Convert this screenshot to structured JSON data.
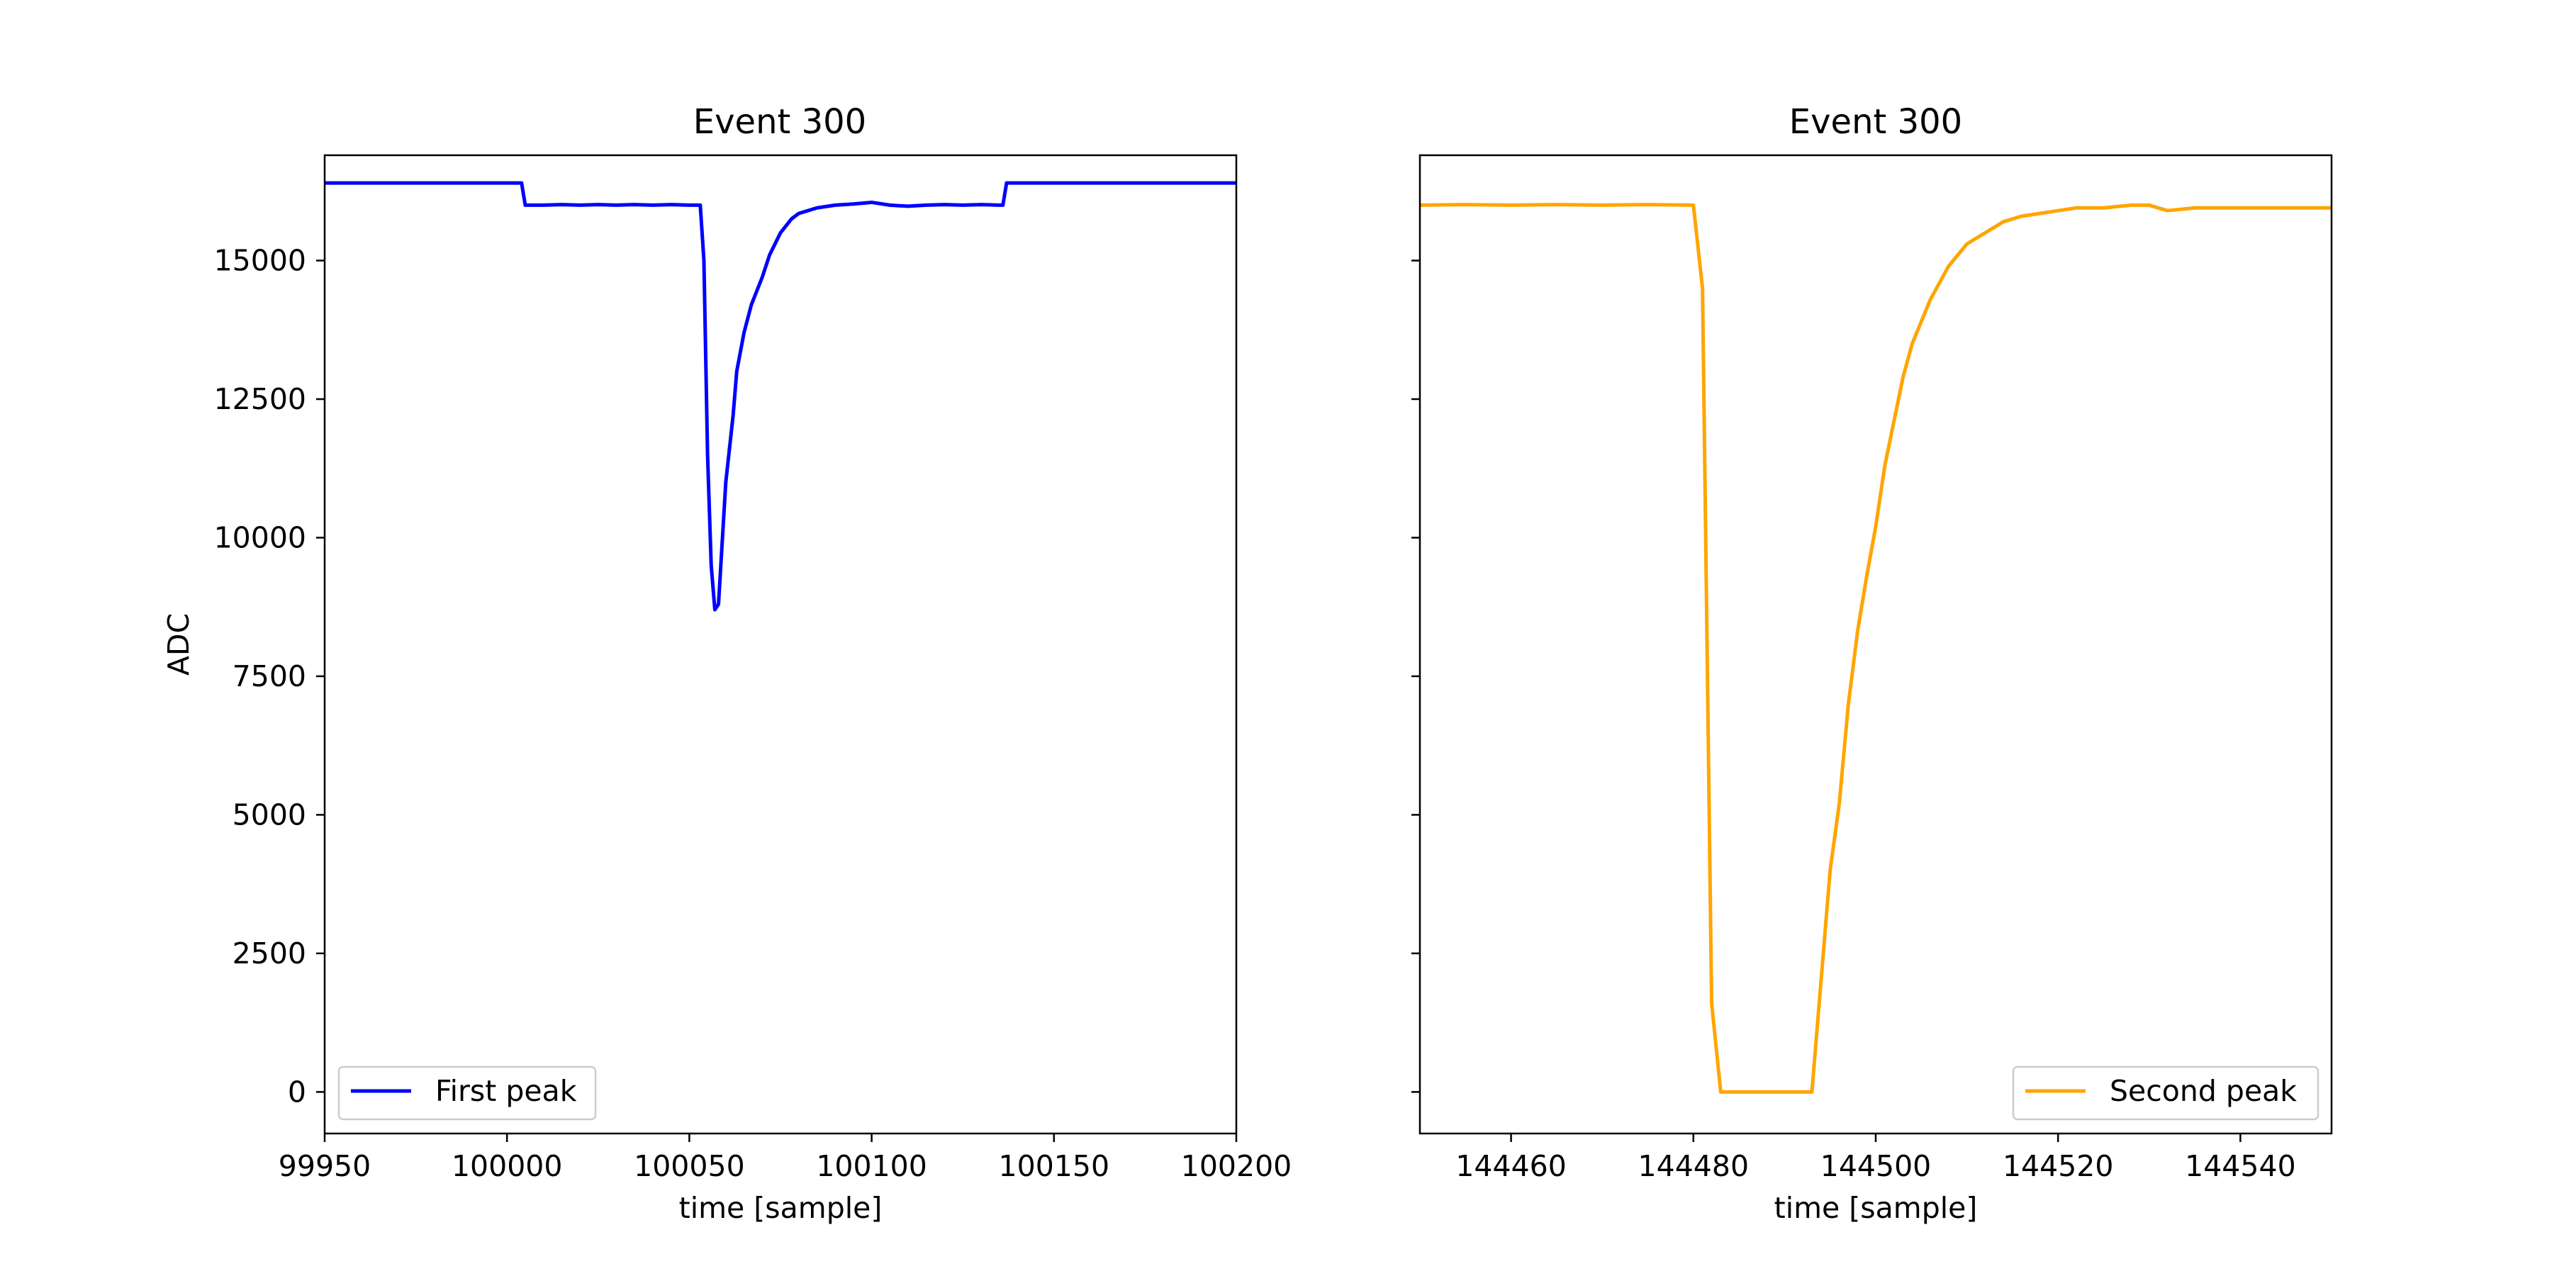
{
  "chart_data": [
    {
      "type": "line",
      "title": "Event 300",
      "xlabel": "time [sample]",
      "ylabel": "ADC",
      "xlim": [
        99950,
        100200
      ],
      "ylim": [
        -750,
        16900
      ],
      "xticks": [
        99950,
        100000,
        100050,
        100100,
        100150,
        100200
      ],
      "yticks": [
        0,
        2500,
        5000,
        7500,
        10000,
        12500,
        15000
      ],
      "legend_position": "lower-left",
      "grid": false,
      "series": [
        {
          "name": "First peak",
          "color": "#0000ff",
          "x": [
            99950,
            100004,
            100005,
            100006,
            100010,
            100015,
            100020,
            100025,
            100030,
            100035,
            100040,
            100045,
            100050,
            100053,
            100054,
            100055,
            100056,
            100057,
            100058,
            100059,
            100060,
            100062,
            100063,
            100065,
            100067,
            100070,
            100072,
            100075,
            100078,
            100080,
            100085,
            100090,
            100095,
            100100,
            100105,
            100110,
            100115,
            100120,
            100125,
            100130,
            100135,
            100136,
            100137,
            100140,
            100200
          ],
          "y": [
            16400,
            16400,
            16000,
            16000,
            16000,
            16010,
            16000,
            16010,
            16000,
            16010,
            16000,
            16010,
            16000,
            16000,
            15000,
            11500,
            9500,
            8700,
            8800,
            9900,
            11000,
            12200,
            13000,
            13700,
            14200,
            14700,
            15100,
            15500,
            15750,
            15850,
            15950,
            16000,
            16020,
            16050,
            16000,
            15980,
            16000,
            16010,
            16000,
            16010,
            16000,
            16000,
            16400,
            16400,
            16400
          ]
        }
      ]
    },
    {
      "type": "line",
      "title": "Event 300",
      "xlabel": "time [sample]",
      "ylabel": "",
      "xlim": [
        144450,
        144550
      ],
      "ylim": [
        -750,
        16900
      ],
      "xticks": [
        144460,
        144480,
        144500,
        144520,
        144540
      ],
      "yticks": [
        0,
        2500,
        5000,
        7500,
        10000,
        12500,
        15000
      ],
      "legend_position": "lower-right",
      "grid": false,
      "series": [
        {
          "name": "Second peak",
          "color": "#ffa500",
          "x": [
            144450,
            144455,
            144460,
            144465,
            144470,
            144475,
            144480,
            144481,
            144482,
            144483,
            144493,
            144494,
            144495,
            144496,
            144497,
            144498,
            144499,
            144500,
            144501,
            144502,
            144503,
            144504,
            144505,
            144506,
            144507,
            144508,
            144509,
            144510,
            144512,
            144514,
            144516,
            144518,
            144520,
            144522,
            144525,
            144528,
            144530,
            144532,
            144535,
            144540,
            144545,
            144550
          ],
          "y": [
            16000,
            16010,
            16000,
            16010,
            16000,
            16010,
            16000,
            14500,
            1600,
            0,
            0,
            2000,
            4000,
            5200,
            7000,
            8300,
            9300,
            10200,
            11300,
            12100,
            12900,
            13500,
            13900,
            14300,
            14600,
            14900,
            15100,
            15300,
            15500,
            15700,
            15800,
            15850,
            15900,
            15950,
            15950,
            16000,
            16000,
            15900,
            15950,
            15950,
            15950,
            15950
          ]
        }
      ]
    }
  ]
}
